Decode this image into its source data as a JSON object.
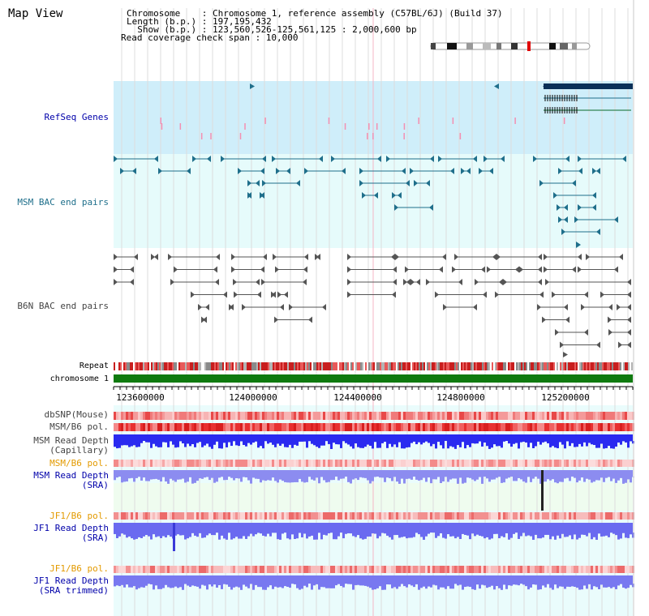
{
  "title": "Map View",
  "header": {
    "line1": "Chromosome    : Chromosome 1, reference assembly (C57BL/6J) (Build 37)",
    "line2": "Length (b.p.) : 197,195,432",
    "line3": "  Show (b.p.) : 123,560,526-125,561,125 : 2,000,600 bp",
    "line4": "Read coverage check span : 10,000"
  },
  "tracks": {
    "refseq": "RefSeq Genes",
    "msm_bac": "MSM BAC end pairs",
    "b6n_bac": "B6N BAC end pairs",
    "repeat": "Repeat",
    "chromosome": "chromosome 1",
    "dbsnp": "dbSNP(Mouse)",
    "msm_b6_pol": "MSM/B6 pol.",
    "msm_depth_cap_1": "MSM Read Depth",
    "msm_depth_cap_2": "(Capillary)",
    "msm_b6_pol2": "MSM/B6 pol.",
    "msm_depth_sra_1": "MSM Read Depth",
    "msm_depth_sra_2": "(SRA)",
    "jf1_b6_pol": "JF1/B6 pol.",
    "jf1_depth_sra_1": "JF1 Read Depth",
    "jf1_depth_sra_2": "(SRA)",
    "jf1_b6_pol2": "JF1/B6 pol.",
    "jf1_depth_trim_1": "JF1 Read Depth",
    "jf1_depth_trim_2": "(SRA trimmed)"
  },
  "axis_ticks": [
    "123600000",
    "124000000",
    "124400000",
    "124800000",
    "125200000"
  ],
  "colors": {
    "label_blue": "#0000aa",
    "label_orange": "#e39a00",
    "refseq_bg": "#cfeefa",
    "msm_bg": "#e6fbfb",
    "b6n_bg": "#ffffff",
    "msm_feature": "#1f6f8b",
    "b6n_feature": "#555555",
    "chromosome_bar": "#0f7a0f"
  }
}
